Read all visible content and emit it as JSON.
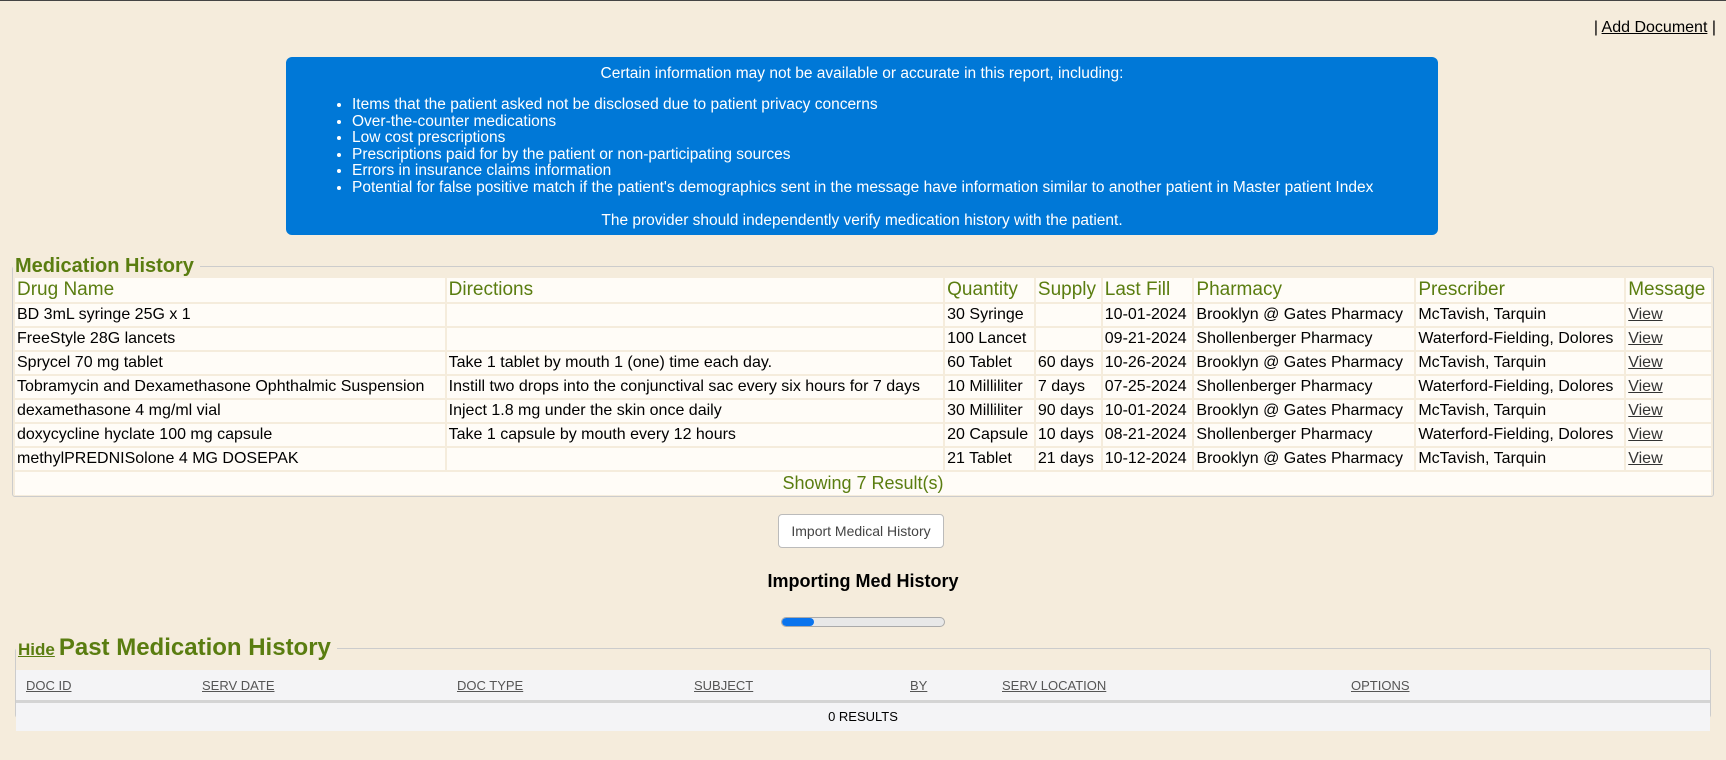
{
  "top_links": {
    "add_document": "Add Document",
    "sep": "|"
  },
  "notice": {
    "intro": "Certain information may not be available or accurate in this report, including:",
    "items": [
      "Items that the patient asked not be disclosed due to patient privacy concerns",
      "Over-the-counter medications",
      "Low cost prescriptions",
      "Prescriptions paid for by the patient or non-participating sources",
      "Errors in insurance claims information",
      "Potential for false positive match if the patient's demographics sent in the message have information similar to another patient in Master patient Index"
    ],
    "footer": "The provider should independently verify medication history with the patient.",
    "color": "#0078d7"
  },
  "medication_history": {
    "title": "Medication History",
    "columns": [
      "Drug Name",
      "Directions",
      "Quantity",
      "Supply",
      "Last Fill",
      "Pharmacy",
      "Prescriber",
      "Message"
    ],
    "rows": [
      [
        "BD 3mL syringe 25G x 1",
        "",
        "30 Syringe",
        "",
        "10-01-2024",
        "Brooklyn @ Gates Pharmacy",
        "McTavish, Tarquin",
        "View"
      ],
      [
        "FreeStyle 28G lancets",
        "",
        "100 Lancet",
        "",
        "09-21-2024",
        "Shollenberger Pharmacy",
        "Waterford-Fielding, Dolores",
        "View"
      ],
      [
        "Sprycel 70 mg tablet",
        "Take 1 tablet by mouth 1 (one) time each day.",
        "60 Tablet",
        "60 days",
        "10-26-2024",
        "Brooklyn @ Gates Pharmacy",
        "McTavish, Tarquin",
        "View"
      ],
      [
        "Tobramycin and Dexamethasone Ophthalmic Suspension",
        "Instill two drops into the conjunctival sac every six hours for 7 days",
        "10 Milliliter",
        "7 days",
        "07-25-2024",
        "Shollenberger Pharmacy",
        "Waterford-Fielding, Dolores",
        "View"
      ],
      [
        "dexamethasone 4 mg/ml vial",
        "Inject 1.8 mg under the skin once daily",
        "30 Milliliter",
        "90 days",
        "10-01-2024",
        "Brooklyn @ Gates Pharmacy",
        "McTavish, Tarquin",
        "View"
      ],
      [
        "doxycycline hyclate 100 mg capsule",
        "Take 1 capsule by mouth every 12 hours",
        "20 Capsule",
        "10 days",
        "08-21-2024",
        "Shollenberger Pharmacy",
        "Waterford-Fielding, Dolores",
        "View"
      ],
      [
        "methylPREDNISolone 4 MG DOSEPAK",
        "",
        "21 Tablet",
        "21 days",
        "10-12-2024",
        "Brooklyn @ Gates Pharmacy",
        "McTavish, Tarquin",
        "View"
      ]
    ],
    "showing": "Showing 7 Result(s)"
  },
  "import_button": "Import Medical History",
  "importing": {
    "label": "Importing Med History",
    "progress_percent": 20
  },
  "past": {
    "hide": "Hide",
    "title": "Past Medication History",
    "columns": [
      "DOC ID",
      "SERV DATE",
      "DOC TYPE",
      "SUBJECT",
      "BY",
      "SERV LOCATION",
      "OPTIONS"
    ],
    "results": "0 RESULTS"
  }
}
